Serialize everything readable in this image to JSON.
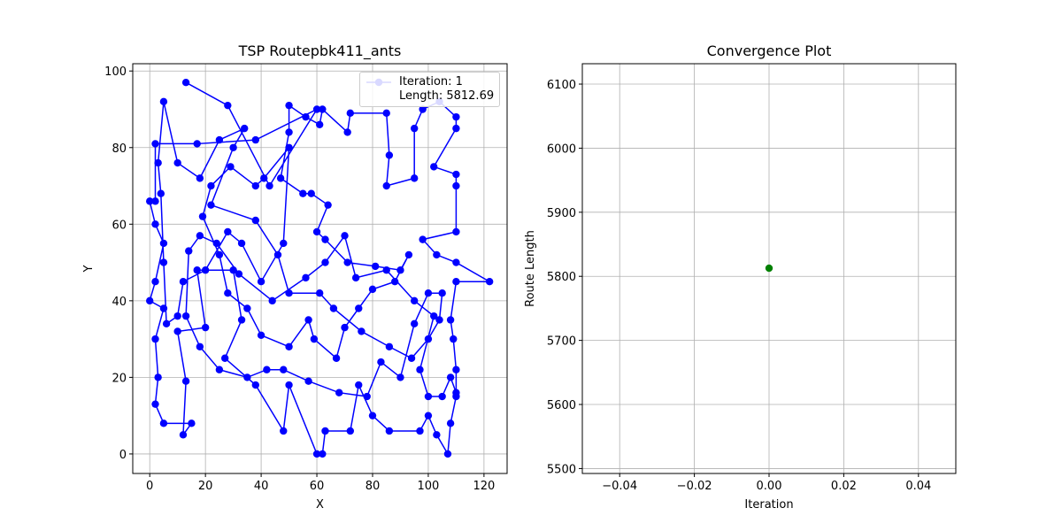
{
  "chart_data": [
    {
      "type": "line",
      "title": "TSP Routepbk411_ants",
      "xlabel": "X",
      "ylabel": "Y",
      "x": [
        13,
        28,
        43,
        60,
        38,
        17,
        2,
        2,
        0,
        2,
        5,
        2,
        0,
        5,
        2,
        3,
        2,
        5,
        15,
        12,
        13,
        10,
        20,
        17,
        30,
        33,
        27,
        38,
        48,
        50,
        60,
        62,
        63,
        72,
        75,
        80,
        86,
        97,
        100,
        103,
        107,
        108,
        110,
        110,
        109,
        108,
        110,
        122,
        110,
        103,
        98,
        110,
        110,
        110,
        102,
        110,
        110,
        104,
        98,
        95,
        95,
        85,
        86,
        85,
        72,
        71,
        62,
        61,
        56,
        50,
        50,
        47,
        55,
        58,
        64,
        60,
        63,
        71,
        81,
        90,
        93,
        88,
        80,
        75,
        70,
        67,
        59,
        57,
        50,
        40,
        35,
        28,
        25,
        19,
        22,
        29,
        38,
        41,
        50,
        48,
        40,
        33,
        28,
        20,
        12,
        10,
        6,
        5,
        4,
        3,
        5,
        10,
        18,
        25,
        34,
        30,
        22,
        38,
        46,
        50,
        61,
        66,
        76,
        86,
        94,
        100,
        104,
        105,
        100,
        95,
        90,
        83,
        78,
        68,
        57,
        48,
        42,
        35,
        25,
        18,
        13,
        14,
        18,
        24,
        32,
        44,
        56,
        63,
        70,
        74,
        85,
        95,
        102,
        97,
        100,
        105,
        108,
        110
      ],
      "series": [
        {
          "name": "Iteration: 1\nLength: 5812.69",
          "color": "#0000ff",
          "values": [
            97,
            91,
            70,
            90,
            82,
            81,
            81,
            66,
            66,
            60,
            55,
            45,
            40,
            38,
            30,
            20,
            13,
            8,
            8,
            5,
            19,
            32,
            33,
            48,
            48,
            35,
            25,
            18,
            6,
            18,
            0,
            0,
            6,
            6,
            18,
            10,
            6,
            6,
            10,
            5,
            0,
            8,
            15,
            22,
            30,
            35,
            45,
            45,
            50,
            52,
            56,
            58,
            70,
            73,
            75,
            85,
            88,
            92,
            90,
            85,
            72,
            70,
            78,
            89,
            89,
            84,
            90,
            86,
            88,
            91,
            84,
            72,
            68,
            68,
            65,
            58,
            56,
            50,
            49,
            48,
            52,
            45,
            43,
            38,
            33,
            25,
            30,
            35,
            28,
            31,
            38,
            42,
            52,
            62,
            70,
            75,
            70,
            72,
            80,
            55,
            45,
            55,
            58,
            48,
            45,
            36,
            34,
            50,
            68,
            76,
            92,
            76,
            72,
            82,
            85,
            80,
            65,
            61,
            52,
            42,
            42,
            38,
            32,
            28,
            25,
            30,
            35,
            42,
            42,
            34,
            20,
            24,
            15,
            16,
            19,
            22,
            22,
            20,
            22,
            28,
            36,
            53,
            57,
            55,
            47,
            40,
            46,
            50,
            57,
            46,
            48,
            40,
            36,
            22,
            15,
            15,
            20,
            16
          ]
        }
      ],
      "xlim": [
        -6.1,
        128.3
      ],
      "ylim": [
        -5.1,
        101.9
      ],
      "xticks": [
        0,
        20,
        40,
        60,
        80,
        100,
        120
      ],
      "yticks": [
        0,
        20,
        40,
        60,
        80,
        100
      ],
      "grid": true,
      "legend": "upper right"
    },
    {
      "type": "scatter",
      "title": "Convergence Plot",
      "xlabel": "Iteration",
      "ylabel": "Route Length",
      "x": [
        0
      ],
      "series": [
        {
          "color": "#008000",
          "values": [
            5812.69
          ]
        }
      ],
      "xlim": [
        -0.05,
        0.05
      ],
      "ylim": [
        5492.3,
        6131.8
      ],
      "xticks": [
        {
          "value": -0.04,
          "label": "−0.04"
        },
        {
          "value": -0.02,
          "label": "−0.02"
        },
        {
          "value": 0,
          "label": "0.00"
        },
        {
          "value": 0.02,
          "label": "0.02"
        },
        {
          "value": 0.04,
          "label": "0.04"
        }
      ],
      "yticks": [
        5500,
        5600,
        5700,
        5800,
        5900,
        6000,
        6100
      ],
      "grid": true
    }
  ]
}
